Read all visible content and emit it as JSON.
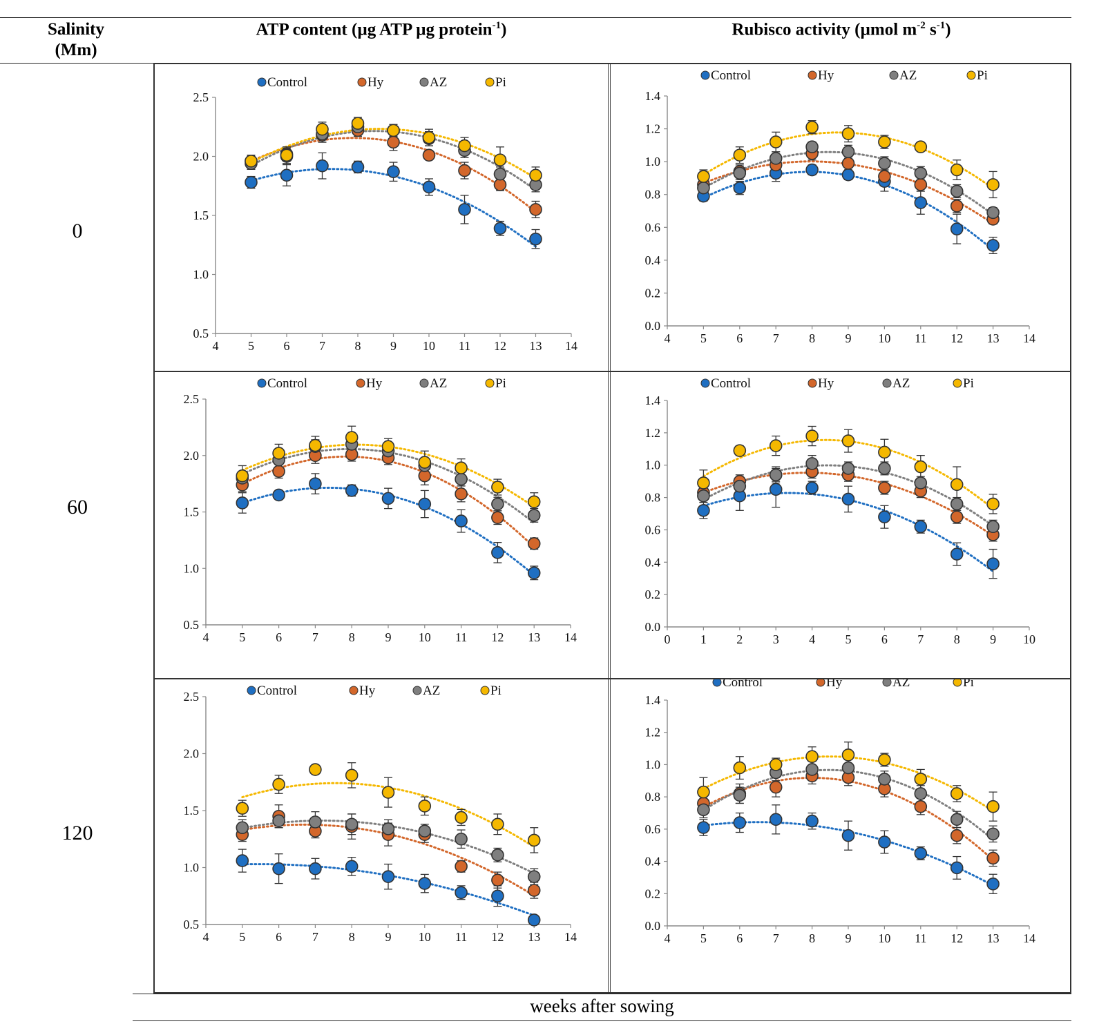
{
  "header": {
    "salinity_line1": "Salinity",
    "salinity_line2": "(Mm)",
    "atp_title": "ATP content (µg ATP µg protein",
    "atp_sup": "-1",
    "atp_close": ")",
    "rubisco_title": "Rubisco activity (µmol m",
    "rubisco_sup1": "-2",
    "rubisco_mid": " s",
    "rubisco_sup2": "-1",
    "rubisco_close": ")"
  },
  "rows": [
    {
      "label": "0"
    },
    {
      "label": "60"
    },
    {
      "label": "120"
    }
  ],
  "footer": {
    "xlabel": "weeks after sowing"
  },
  "colors": {
    "Control": "#1f6fc2",
    "Hy": "#d3672b",
    "AZ": "#7f7f7f",
    "Pi": "#f5b800"
  },
  "chart_data": [
    {
      "type": "scatter",
      "panel": "ATP 0 mM",
      "title": "",
      "xlabel": "",
      "ylabel": "",
      "xlim": [
        4,
        14
      ],
      "ylim": [
        0.5,
        2.5
      ],
      "xticks": [
        4,
        5,
        6,
        7,
        8,
        9,
        10,
        11,
        12,
        13,
        14
      ],
      "yticks": [
        0.5,
        1.0,
        1.5,
        2.0,
        2.5
      ],
      "ydec": 1,
      "legend": [
        "Control",
        "Hy",
        "AZ",
        "Pi"
      ],
      "x": [
        5,
        6,
        7,
        8,
        9,
        10,
        11,
        12,
        13
      ],
      "series": [
        {
          "name": "Control",
          "values": [
            1.78,
            1.84,
            1.92,
            1.91,
            1.87,
            1.74,
            1.55,
            1.39,
            1.3
          ],
          "err": [
            0.05,
            0.09,
            0.11,
            0.05,
            0.08,
            0.07,
            0.12,
            0.06,
            0.08
          ]
        },
        {
          "name": "Hy",
          "values": [
            1.96,
            2.02,
            2.18,
            2.22,
            2.12,
            2.01,
            1.88,
            1.76,
            1.55
          ],
          "err": [
            0.05,
            0.06,
            0.06,
            0.05,
            0.07,
            0.04,
            0.07,
            0.05,
            0.07
          ]
        },
        {
          "name": "AZ",
          "values": [
            1.94,
            2.0,
            2.19,
            2.25,
            2.22,
            2.15,
            2.05,
            1.85,
            1.76
          ],
          "err": [
            0.05,
            0.07,
            0.07,
            0.06,
            0.05,
            0.06,
            0.06,
            0.06,
            0.06
          ]
        },
        {
          "name": "Pi",
          "values": [
            1.96,
            2.01,
            2.23,
            2.28,
            2.22,
            2.16,
            2.09,
            1.97,
            1.84
          ],
          "err": [
            0.05,
            0.07,
            0.06,
            0.05,
            0.05,
            0.07,
            0.07,
            0.11,
            0.07
          ]
        }
      ]
    },
    {
      "type": "scatter",
      "panel": "Rubisco 0 mM",
      "title": "",
      "xlabel": "",
      "ylabel": "",
      "xlim": [
        4,
        14
      ],
      "ylim": [
        0.0,
        1.4
      ],
      "xticks": [
        4,
        5,
        6,
        7,
        8,
        9,
        10,
        11,
        12,
        13,
        14
      ],
      "yticks": [
        0.0,
        0.2,
        0.4,
        0.6,
        0.8,
        1.0,
        1.2,
        1.4
      ],
      "ydec": 1,
      "legend": [
        "Control",
        "Hy",
        "AZ",
        "Pi"
      ],
      "x": [
        5,
        6,
        7,
        8,
        9,
        10,
        11,
        12,
        13
      ],
      "series": [
        {
          "name": "Control",
          "values": [
            0.79,
            0.84,
            0.93,
            0.95,
            0.92,
            0.88,
            0.75,
            0.59,
            0.49
          ],
          "err": [
            0.03,
            0.04,
            0.05,
            0.03,
            0.03,
            0.06,
            0.07,
            0.09,
            0.05
          ]
        },
        {
          "name": "Hy",
          "values": [
            0.86,
            0.94,
            0.98,
            1.05,
            0.99,
            0.91,
            0.86,
            0.73,
            0.65
          ],
          "err": [
            0.04,
            0.04,
            0.04,
            0.04,
            0.04,
            0.04,
            0.04,
            0.04,
            0.03
          ]
        },
        {
          "name": "AZ",
          "values": [
            0.84,
            0.93,
            1.02,
            1.09,
            1.06,
            0.99,
            0.93,
            0.82,
            0.69
          ],
          "err": [
            0.04,
            0.04,
            0.04,
            0.03,
            0.04,
            0.04,
            0.04,
            0.04,
            0.03
          ]
        },
        {
          "name": "Pi",
          "values": [
            0.91,
            1.04,
            1.12,
            1.21,
            1.17,
            1.12,
            1.09,
            0.95,
            0.86
          ],
          "err": [
            0.04,
            0.05,
            0.06,
            0.04,
            0.05,
            0.04,
            0.02,
            0.06,
            0.08
          ]
        }
      ]
    },
    {
      "type": "scatter",
      "panel": "ATP 60 mM",
      "title": "",
      "xlabel": "",
      "ylabel": "",
      "xlim": [
        4,
        14
      ],
      "ylim": [
        0.5,
        2.5
      ],
      "xticks": [
        4,
        5,
        6,
        7,
        8,
        9,
        10,
        11,
        12,
        13,
        14
      ],
      "yticks": [
        0.5,
        1.0,
        1.5,
        2.0,
        2.5
      ],
      "ydec": 1,
      "legend": [
        "Control",
        "Hy",
        "AZ",
        "Pi"
      ],
      "x": [
        5,
        6,
        7,
        8,
        9,
        10,
        11,
        12,
        13
      ],
      "series": [
        {
          "name": "Control",
          "values": [
            1.58,
            1.65,
            1.75,
            1.69,
            1.62,
            1.57,
            1.42,
            1.14,
            0.96
          ],
          "err": [
            0.09,
            0.04,
            0.09,
            0.05,
            0.09,
            0.12,
            0.1,
            0.09,
            0.06
          ]
        },
        {
          "name": "Hy",
          "values": [
            1.74,
            1.86,
            2.0,
            2.01,
            1.98,
            1.82,
            1.66,
            1.45,
            1.22
          ],
          "err": [
            0.06,
            0.06,
            0.07,
            0.06,
            0.06,
            0.08,
            0.07,
            0.06,
            0.05
          ]
        },
        {
          "name": "AZ",
          "values": [
            1.8,
            1.96,
            2.08,
            2.1,
            2.04,
            1.91,
            1.79,
            1.57,
            1.47
          ],
          "err": [
            0.06,
            0.06,
            0.06,
            0.06,
            0.06,
            0.06,
            0.06,
            0.06,
            0.06
          ]
        },
        {
          "name": "Pi",
          "values": [
            1.82,
            2.02,
            2.09,
            2.16,
            2.08,
            1.94,
            1.89,
            1.72,
            1.59
          ],
          "err": [
            0.09,
            0.08,
            0.08,
            0.1,
            0.07,
            0.1,
            0.08,
            0.07,
            0.08
          ]
        }
      ]
    },
    {
      "type": "scatter",
      "panel": "Rubisco 60 mM",
      "title": "",
      "xlabel": "",
      "ylabel": "",
      "xlim": [
        0,
        10
      ],
      "ylim": [
        0.0,
        1.4
      ],
      "xticks": [
        0,
        1,
        2,
        3,
        4,
        5,
        6,
        7,
        8,
        9,
        10
      ],
      "yticks": [
        0.0,
        0.2,
        0.4,
        0.6,
        0.8,
        1.0,
        1.2,
        1.4
      ],
      "ydec": 1,
      "legend": [
        "Control",
        "Hy",
        "AZ",
        "Pi"
      ],
      "x": [
        1,
        2,
        3,
        4,
        5,
        6,
        7,
        8,
        9
      ],
      "series": [
        {
          "name": "Control",
          "values": [
            0.72,
            0.81,
            0.85,
            0.86,
            0.79,
            0.68,
            0.62,
            0.45,
            0.39
          ],
          "err": [
            0.05,
            0.09,
            0.11,
            0.04,
            0.08,
            0.07,
            0.04,
            0.07,
            0.09
          ]
        },
        {
          "name": "Hy",
          "values": [
            0.83,
            0.9,
            0.94,
            0.96,
            0.94,
            0.86,
            0.84,
            0.68,
            0.57
          ],
          "err": [
            0.04,
            0.04,
            0.04,
            0.04,
            0.04,
            0.04,
            0.04,
            0.04,
            0.04
          ]
        },
        {
          "name": "AZ",
          "values": [
            0.81,
            0.87,
            0.94,
            1.01,
            0.98,
            0.98,
            0.89,
            0.76,
            0.62
          ],
          "err": [
            0.04,
            0.04,
            0.05,
            0.05,
            0.04,
            0.04,
            0.04,
            0.04,
            0.04
          ]
        },
        {
          "name": "Pi",
          "values": [
            0.89,
            1.09,
            1.12,
            1.18,
            1.15,
            1.08,
            0.99,
            0.88,
            0.76
          ],
          "err": [
            0.08,
            0.03,
            0.06,
            0.06,
            0.07,
            0.08,
            0.07,
            0.11,
            0.06
          ]
        }
      ]
    },
    {
      "type": "scatter",
      "panel": "ATP 120 mM",
      "title": "",
      "xlabel": "",
      "ylabel": "",
      "xlim": [
        4,
        14
      ],
      "ylim": [
        0.5,
        2.5
      ],
      "xticks": [
        4,
        5,
        6,
        7,
        8,
        9,
        10,
        11,
        12,
        13,
        14
      ],
      "yticks": [
        0.5,
        1.0,
        1.5,
        2.0,
        2.5
      ],
      "ydec": 1,
      "legend": [
        "Control",
        "Hy",
        "AZ",
        "Pi"
      ],
      "x": [
        5,
        6,
        7,
        8,
        9,
        10,
        11,
        12,
        13
      ],
      "series": [
        {
          "name": "Control",
          "values": [
            1.06,
            0.99,
            0.99,
            1.01,
            0.92,
            0.86,
            0.78,
            0.75,
            0.54
          ],
          "err": [
            0.1,
            0.13,
            0.09,
            0.08,
            0.11,
            0.08,
            0.06,
            0.09,
            0.04
          ]
        },
        {
          "name": "Hy",
          "values": [
            1.29,
            1.45,
            1.32,
            1.36,
            1.29,
            1.29,
            1.01,
            0.89,
            0.8
          ],
          "err": [
            0.06,
            0.1,
            0.06,
            0.11,
            0.1,
            0.07,
            0.05,
            0.07,
            0.07
          ]
        },
        {
          "name": "AZ",
          "values": [
            1.35,
            1.41,
            1.4,
            1.38,
            1.34,
            1.32,
            1.25,
            1.11,
            0.92
          ],
          "err": [
            0.07,
            0.06,
            0.09,
            0.09,
            0.08,
            0.06,
            0.08,
            0.06,
            0.07
          ]
        },
        {
          "name": "Pi",
          "values": [
            1.52,
            1.73,
            1.86,
            1.81,
            1.66,
            1.54,
            1.44,
            1.38,
            1.24
          ],
          "err": [
            0.07,
            0.08,
            0.04,
            0.11,
            0.13,
            0.08,
            0.07,
            0.09,
            0.11
          ]
        }
      ]
    },
    {
      "type": "scatter",
      "panel": "Rubisco 120 mM",
      "title": "",
      "xlabel": "",
      "ylabel": "",
      "xlim": [
        4,
        14
      ],
      "ylim": [
        0.0,
        1.4
      ],
      "xticks": [
        4,
        5,
        6,
        7,
        8,
        9,
        10,
        11,
        12,
        13,
        14
      ],
      "yticks": [
        0.0,
        0.2,
        0.4,
        0.6,
        0.8,
        1.0,
        1.2,
        1.4
      ],
      "ydec": 1,
      "legend": [
        "Control",
        "Hy",
        "AZ",
        "Pi"
      ],
      "x": [
        5,
        6,
        7,
        8,
        9,
        10,
        11,
        12,
        13
      ],
      "series": [
        {
          "name": "Control",
          "values": [
            0.61,
            0.64,
            0.66,
            0.65,
            0.56,
            0.52,
            0.45,
            0.36,
            0.26
          ],
          "err": [
            0.05,
            0.06,
            0.09,
            0.05,
            0.09,
            0.07,
            0.04,
            0.07,
            0.06
          ]
        },
        {
          "name": "Hy",
          "values": [
            0.76,
            0.82,
            0.86,
            0.93,
            0.92,
            0.85,
            0.74,
            0.56,
            0.42
          ],
          "err": [
            0.05,
            0.06,
            0.06,
            0.05,
            0.05,
            0.05,
            0.05,
            0.05,
            0.05
          ]
        },
        {
          "name": "AZ",
          "values": [
            0.72,
            0.81,
            0.95,
            0.97,
            0.98,
            0.91,
            0.82,
            0.66,
            0.57
          ],
          "err": [
            0.05,
            0.05,
            0.05,
            0.05,
            0.05,
            0.05,
            0.05,
            0.05,
            0.05
          ]
        },
        {
          "name": "Pi",
          "values": [
            0.83,
            0.98,
            1.0,
            1.05,
            1.06,
            1.03,
            0.91,
            0.82,
            0.74
          ],
          "err": [
            0.09,
            0.07,
            0.04,
            0.06,
            0.08,
            0.04,
            0.06,
            0.05,
            0.09
          ]
        }
      ]
    }
  ]
}
